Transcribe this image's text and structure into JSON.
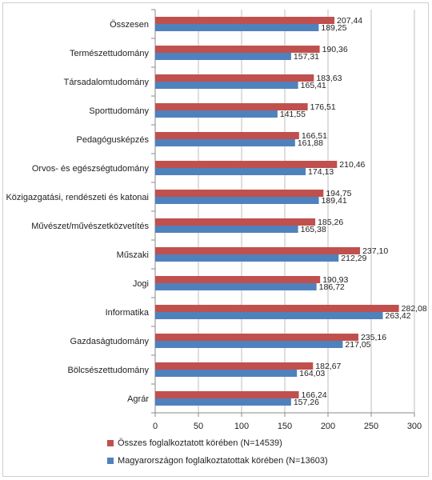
{
  "chart_data": {
    "type": "bar",
    "orientation": "horizontal",
    "categories": [
      "Összesen",
      "Természettudomány",
      "Társadalomtudomány",
      "Sporttudomány",
      "Pedagógusképzés",
      "Orvos- és egészségtudomány",
      "Közigazgatási, rendészeti és katonai",
      "Művészet/művészetközvetítés",
      "Műszaki",
      "Jogi",
      "Informatika",
      "Gazdaságtudomány",
      "Bölcsészettudomány",
      "Agrár"
    ],
    "series": [
      {
        "name": "Összes foglalkoztatott körében (N=14539)",
        "color": "#c0504d",
        "values": [
          207.44,
          190.36,
          183.63,
          176.51,
          166.51,
          210.46,
          194.75,
          185.26,
          237.1,
          190.93,
          282.08,
          235.16,
          182.67,
          166.24
        ],
        "labels": [
          "207,44",
          "190,36",
          "183,63",
          "176,51",
          "166,51",
          "210,46",
          "194,75",
          "185,26",
          "237,10",
          "190,93",
          "282,08",
          "235,16",
          "182,67",
          "166,24"
        ]
      },
      {
        "name": "Magyarországon foglalkoztatottak körében (N=13603)",
        "color": "#4f81bd",
        "values": [
          189.25,
          157.31,
          165.41,
          141.55,
          161.88,
          174.13,
          189.41,
          165.38,
          212.29,
          186.72,
          263.42,
          217.05,
          164.03,
          157.26
        ],
        "labels": [
          "189,25",
          "157,31",
          "165,41",
          "141,55",
          "161,88",
          "174,13",
          "189,41",
          "165,38",
          "212,29",
          "186,72",
          "263,42",
          "217,05",
          "164,03",
          "157,26"
        ]
      }
    ],
    "xlim": [
      0,
      300
    ],
    "xticks": [
      "0",
      "50",
      "100",
      "150",
      "200",
      "250",
      "300"
    ],
    "xtick_values": [
      0,
      50,
      100,
      150,
      200,
      250,
      300
    ],
    "grid": true,
    "legend_position": "bottom-left",
    "title": "",
    "xlabel": "",
    "ylabel": ""
  }
}
